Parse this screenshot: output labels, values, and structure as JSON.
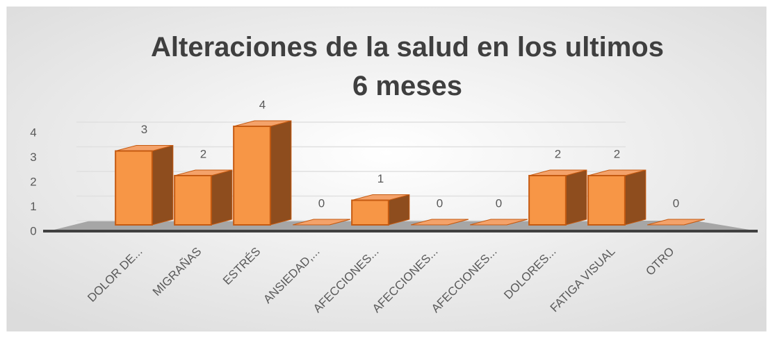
{
  "chart_data": {
    "type": "bar",
    "title": "Alteraciones de la salud en los ultimos 6 meses",
    "categories": [
      "DOLOR DE...",
      "MIGRAÑAS",
      "ESTRÉS",
      "ANSIEDAD,...",
      "AFECCIONES...",
      "AFECCIONES...",
      "AFECCIONES...",
      "DOLORES...",
      "FATIGA VISUAL",
      "OTRO"
    ],
    "values": [
      3,
      2,
      4,
      0,
      1,
      0,
      0,
      2,
      2,
      0
    ],
    "color": "#f79646",
    "ylim": [
      0,
      4
    ],
    "yticks": [
      0,
      1,
      2,
      3,
      4
    ],
    "grid": true
  }
}
